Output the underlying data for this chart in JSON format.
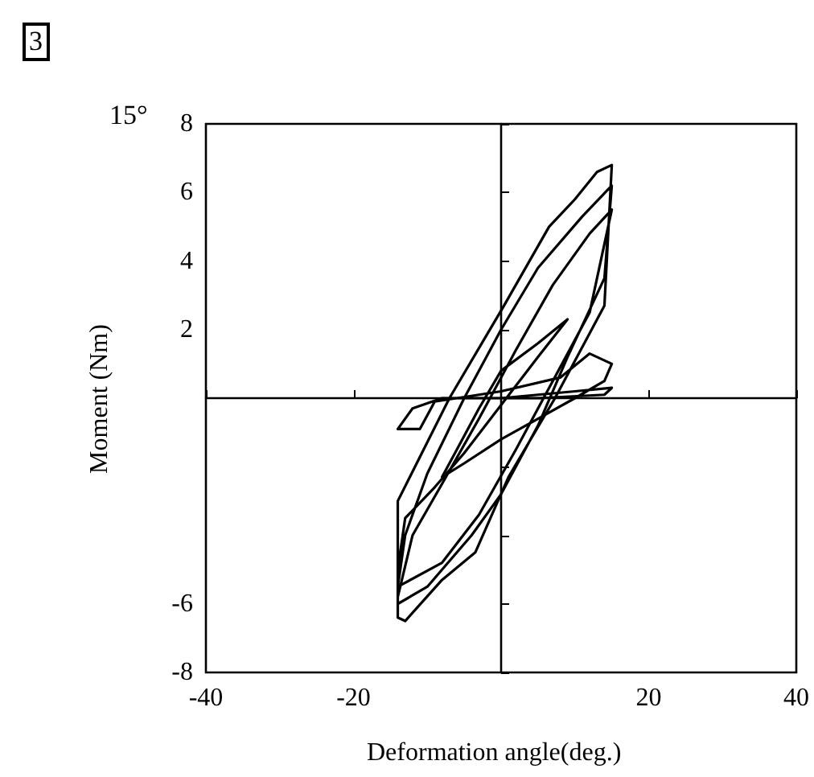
{
  "chart_data": {
    "type": "line",
    "xlabel": "Deformation angle(deg.)",
    "ylabel": "Moment (Nm)",
    "annotations": [
      "3",
      "15°"
    ],
    "xlim": [
      -40,
      40
    ],
    "xticks": [
      -40,
      -20,
      {
        "value": 0,
        "label": null
      },
      20,
      40
    ],
    "ylim": [
      -8,
      8
    ],
    "yticks": [
      -8,
      -6,
      {
        "value": -4,
        "label": null
      },
      {
        "value": -2,
        "label": null
      },
      {
        "value": 0,
        "label": null
      },
      2,
      4,
      6,
      8
    ],
    "marker": "none",
    "line_style": "solid",
    "series": [
      {
        "color": "#000000",
        "x": [
          0,
          5,
          10,
          15,
          14,
          5,
          0,
          -8,
          -12,
          -14,
          -11,
          -9,
          0,
          8,
          12,
          15,
          14,
          10,
          5,
          0,
          -5,
          -8,
          -6,
          -3,
          0,
          5,
          9,
          5,
          0,
          -5,
          -9,
          -13,
          -14,
          -14,
          -13,
          -8,
          -3.5,
          1,
          7.3,
          14,
          15,
          13,
          10,
          6.5,
          0.4,
          -7,
          -14,
          -14,
          -10,
          -4,
          0,
          5,
          9,
          14,
          15,
          11,
          5,
          0,
          -5,
          -10,
          -13,
          -14,
          -8,
          -3,
          2,
          7,
          12,
          15,
          12,
          7,
          2,
          -3,
          -8,
          -12,
          -14
        ],
        "values": [
          0,
          0.1,
          0.2,
          0.3,
          0.1,
          0,
          0,
          0,
          -0.3,
          -0.9,
          -0.9,
          -0.1,
          0.2,
          0.6,
          1.3,
          1.0,
          0.5,
          0,
          -0.6,
          -1.2,
          -1.9,
          -2.3,
          -1.5,
          -0.3,
          0.8,
          1.6,
          2.3,
          1.2,
          -0.2,
          -1.6,
          -2.6,
          -3.5,
          -5,
          -6.4,
          -6.5,
          -5.3,
          -4.5,
          -2.3,
          0,
          2.7,
          6.8,
          6.6,
          5.8,
          5,
          2.7,
          0,
          -3,
          -6,
          -5.5,
          -4,
          -2.8,
          -0.8,
          1.2,
          3.5,
          6.2,
          5.3,
          3.8,
          2,
          0,
          -2.2,
          -4,
          -5.5,
          -4.8,
          -3.4,
          -1.5,
          0.5,
          2.5,
          5.5,
          4.8,
          3.3,
          1.4,
          -0.6,
          -2.5,
          -4,
          -5.8
        ]
      }
    ]
  }
}
